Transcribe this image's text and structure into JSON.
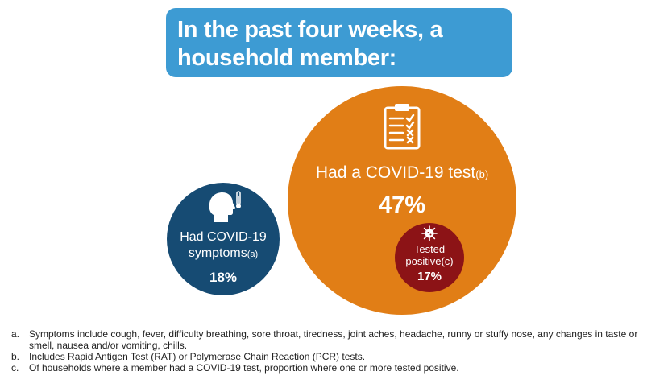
{
  "colors": {
    "banner": "#3d9bd3",
    "test_circle": "#e17e16",
    "symptoms_circle": "#164b73",
    "positive_circle": "#8c1316"
  },
  "heading": {
    "line1": "In the past four weeks, a",
    "line2": "household member:"
  },
  "test": {
    "label": "Had a COVID-19 test",
    "note_ref": "(b)",
    "value": "47%",
    "icon": "clipboard-checklist-icon"
  },
  "symptoms": {
    "label_line1": "Had COVID-19",
    "label_line2": "symptoms",
    "note_ref": "(a)",
    "value": "18%",
    "icon": "head-thermometer-icon"
  },
  "positive": {
    "label_line1": "Tested",
    "label_line2": "positive",
    "note_ref": "(c)",
    "value": "17%",
    "icon": "virus-icon"
  },
  "footnotes": [
    {
      "marker": "a.",
      "text": "Symptoms include cough, fever, difficulty breathing, sore throat, tiredness, joint aches, headache, runny or stuffy nose, any changes in taste or smell, nausea and/or vomiting, chills."
    },
    {
      "marker": "b.",
      "text": "Includes Rapid Antigen Test (RAT) or Polymerase Chain Reaction (PCR) tests."
    },
    {
      "marker": "c.",
      "text": "Of households where a member had a COVID-19 test, proportion where one or more tested positive."
    }
  ]
}
